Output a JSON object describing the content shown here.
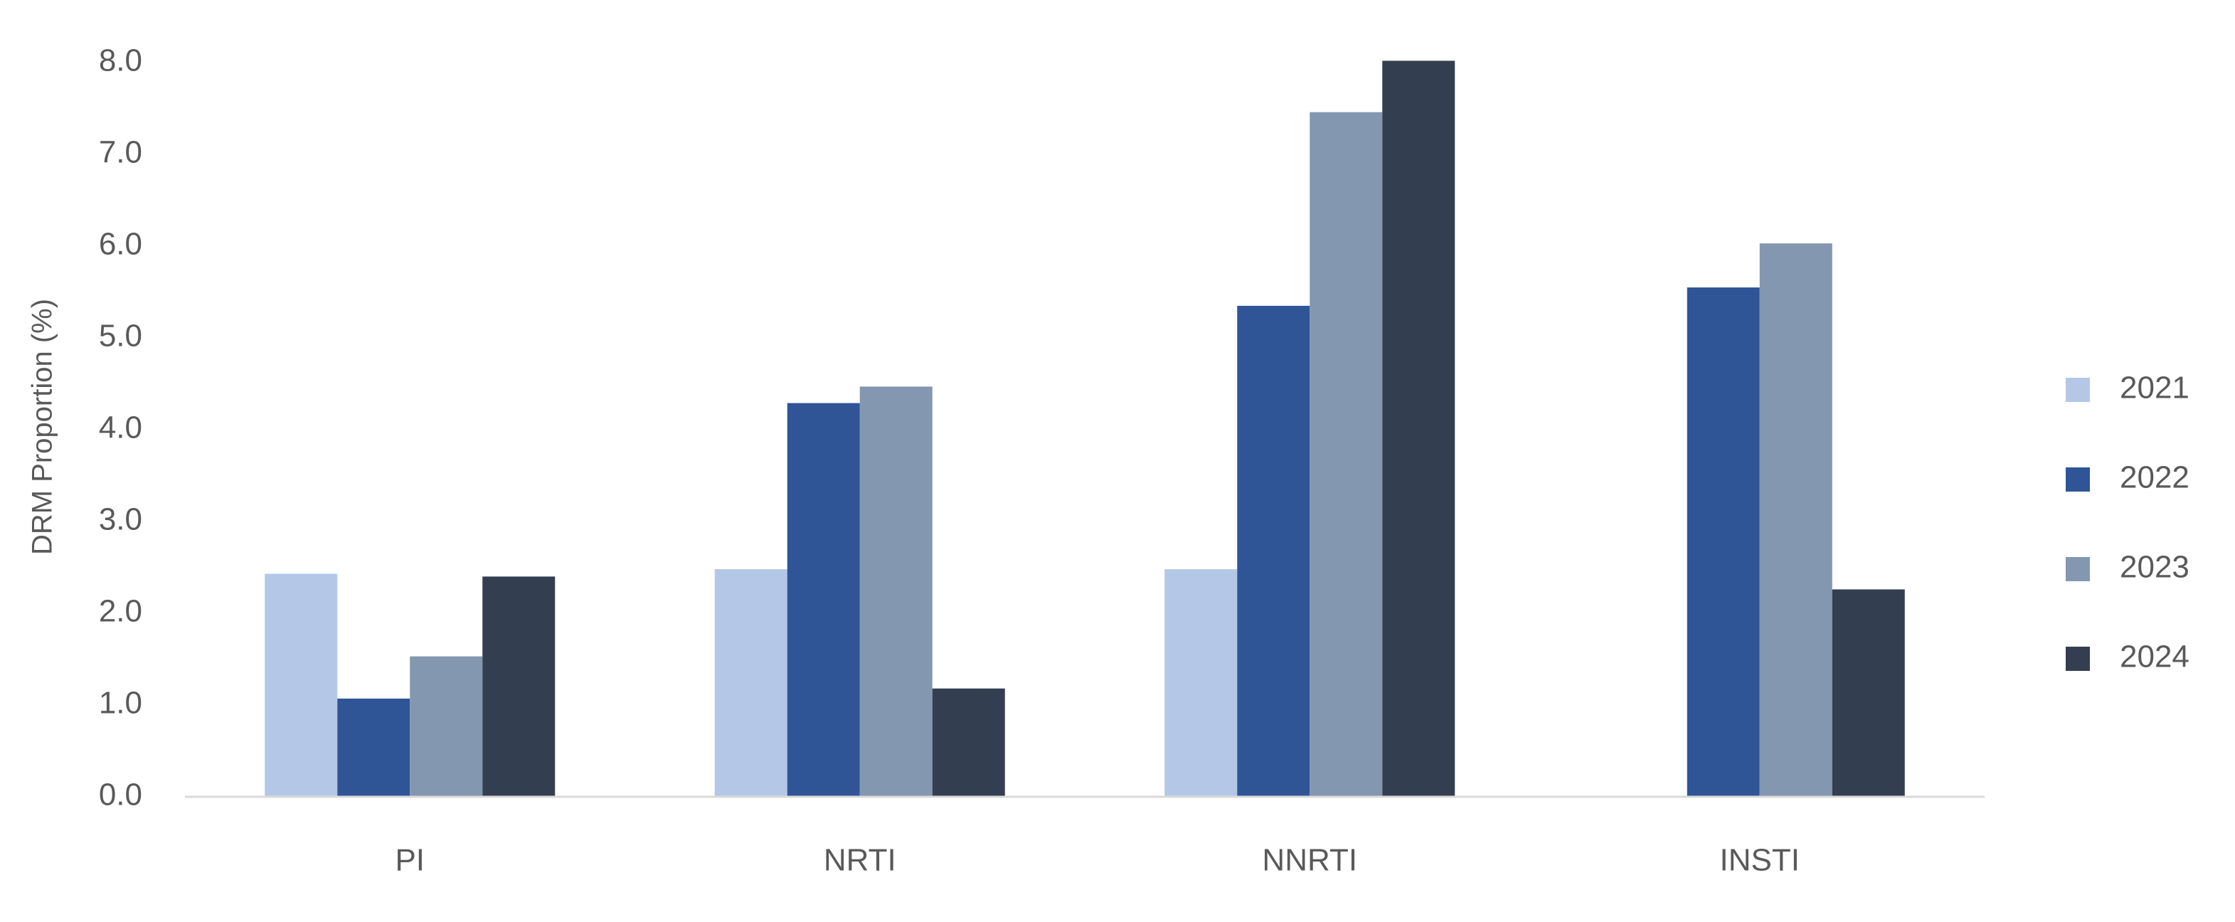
{
  "chart_data": {
    "type": "bar",
    "y_label": "DRM Proportion (%)",
    "categories": [
      "PI",
      "NRTI",
      "NNRTI",
      "INSTI"
    ],
    "series": [
      {
        "name": "2021",
        "color": "#b4c7e7",
        "values": [
          2.43,
          2.48,
          2.48,
          null
        ]
      },
      {
        "name": "2022",
        "color": "#2f5597",
        "values": [
          1.07,
          4.29,
          5.35,
          5.55
        ]
      },
      {
        "name": "2023",
        "color": "#8497b0",
        "values": [
          1.53,
          4.47,
          7.46,
          6.03
        ]
      },
      {
        "name": "2024",
        "color": "#333f50",
        "values": [
          2.4,
          1.18,
          8.02,
          2.26
        ]
      }
    ],
    "ylim": [
      0,
      8
    ],
    "yticks": [
      {
        "value": 0,
        "label": "0.0"
      },
      {
        "value": 1,
        "label": "1.0"
      },
      {
        "value": 2,
        "label": "2.0"
      },
      {
        "value": 3,
        "label": "3.0"
      },
      {
        "value": 4,
        "label": "4.0"
      },
      {
        "value": 5,
        "label": "5.0"
      },
      {
        "value": 6,
        "label": "6.0"
      },
      {
        "value": 7,
        "label": "7.0"
      },
      {
        "value": 8,
        "label": "8.0"
      }
    ],
    "grid": false,
    "legend": "right"
  }
}
